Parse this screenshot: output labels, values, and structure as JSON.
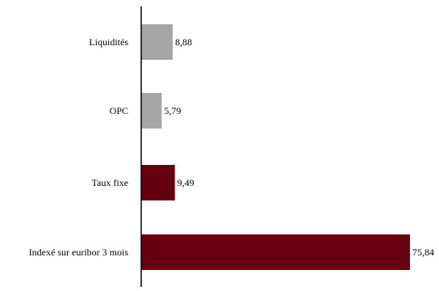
{
  "chart_data": {
    "type": "bar",
    "orientation": "horizontal",
    "categories": [
      "Liquidités",
      "OPC",
      "Taux fixe",
      "Indexé sur euribor 3 mois"
    ],
    "values": [
      8.88,
      5.79,
      9.49,
      75.84
    ],
    "value_labels": [
      "8,88",
      "5,79",
      "9,49",
      "75,84"
    ],
    "bar_colors": [
      "#a6a6a6",
      "#a6a6a6",
      "#660011",
      "#660011"
    ],
    "title": "",
    "xlabel": "",
    "ylabel": "",
    "xlim": [
      0,
      75.84
    ],
    "grid": false,
    "legend": "none"
  }
}
